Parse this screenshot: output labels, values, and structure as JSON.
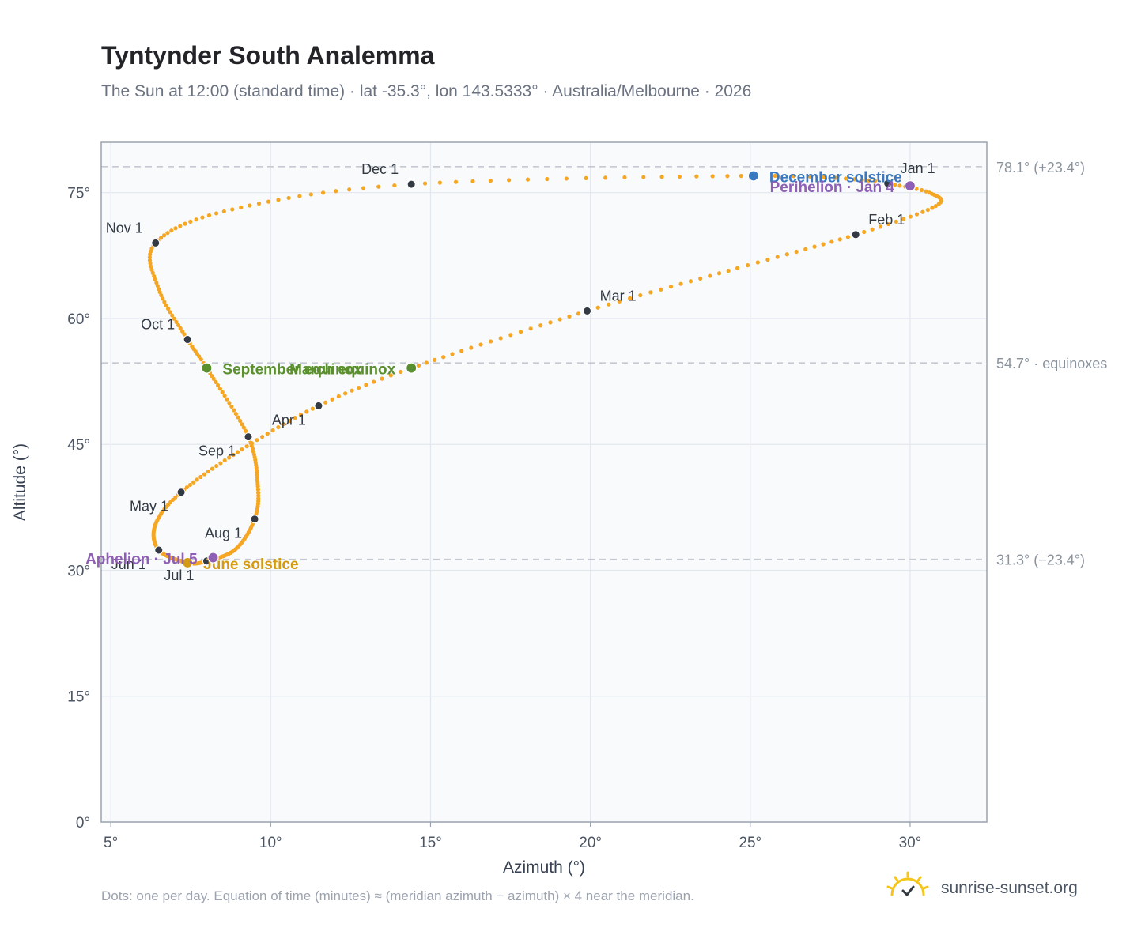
{
  "header": {
    "title": "Tyntynder South Analemma",
    "subtitle": "The Sun at 12:00 (standard time) · lat -35.3°, lon 143.5333° · Australia/Melbourne · 2026"
  },
  "footer": {
    "note": "Dots: one per day. Equation of time (minutes) ≈ (meridian azimuth − azimuth) × 4 near the meridian.",
    "brand": "sunrise-sunset.org"
  },
  "colors": {
    "curve": "#f5a623",
    "month_marker": "#333a44",
    "equinox": "#5a8f2e",
    "december_solstice": "#3a78c0",
    "june_solstice": "#d49a12",
    "perihelion": "#8e5fb5",
    "aphelion": "#8e5fb5",
    "plot_bg": "#f8fafc",
    "grid": "#e3e8ee",
    "reference_line": "#c5cad2"
  },
  "chart_data": {
    "type": "scatter",
    "xlabel": "Azimuth (°)",
    "ylabel": "Altitude (°)",
    "xlim": [
      4.7,
      32.4
    ],
    "ylim": [
      0,
      81
    ],
    "x_ticks": [
      5,
      10,
      15,
      20,
      25,
      30
    ],
    "x_tick_labels": [
      "5°",
      "10°",
      "15°",
      "20°",
      "25°",
      "30°"
    ],
    "y_ticks": [
      0,
      15,
      30,
      45,
      60,
      75
    ],
    "y_tick_labels": [
      "0°",
      "15°",
      "30°",
      "45°",
      "60°",
      "75°"
    ],
    "grid": true,
    "reference_lines": [
      {
        "y": 78.1,
        "label": "78.1° (+23.4°)"
      },
      {
        "y": 54.7,
        "label": "54.7° · equinoxes"
      },
      {
        "y": 31.3,
        "label": "31.3° (−23.4°)"
      }
    ],
    "analemma_path": [
      {
        "day": 1,
        "x": 29.3,
        "y": 76.1
      },
      {
        "day": 10,
        "x": 30.6,
        "y": 75.0
      },
      {
        "day": 20,
        "x": 30.8,
        "y": 73.4
      },
      {
        "day": 32,
        "x": 28.3,
        "y": 70.0
      },
      {
        "day": 45,
        "x": 24.6,
        "y": 66.0
      },
      {
        "day": 60,
        "x": 19.9,
        "y": 60.9
      },
      {
        "day": 79,
        "x": 14.4,
        "y": 54.1
      },
      {
        "day": 91,
        "x": 11.5,
        "y": 49.6
      },
      {
        "day": 105,
        "x": 9.1,
        "y": 44.4
      },
      {
        "day": 121,
        "x": 7.2,
        "y": 39.3
      },
      {
        "day": 135,
        "x": 6.4,
        "y": 35.5
      },
      {
        "day": 152,
        "x": 6.5,
        "y": 32.4
      },
      {
        "day": 172,
        "x": 7.4,
        "y": 30.9
      },
      {
        "day": 182,
        "x": 8.0,
        "y": 31.1
      },
      {
        "day": 198,
        "x": 8.9,
        "y": 32.5
      },
      {
        "day": 213,
        "x": 9.5,
        "y": 36.1
      },
      {
        "day": 225,
        "x": 9.6,
        "y": 40.0
      },
      {
        "day": 244,
        "x": 9.3,
        "y": 45.9
      },
      {
        "day": 265,
        "x": 8.0,
        "y": 54.1
      },
      {
        "day": 274,
        "x": 7.4,
        "y": 57.5
      },
      {
        "day": 290,
        "x": 6.5,
        "y": 63.5
      },
      {
        "day": 305,
        "x": 6.4,
        "y": 69.0
      },
      {
        "day": 320,
        "x": 8.8,
        "y": 73.0
      },
      {
        "day": 335,
        "x": 14.4,
        "y": 76.0
      },
      {
        "day": 355,
        "x": 25.1,
        "y": 77.0
      },
      {
        "day": 365,
        "x": 28.9,
        "y": 76.4
      }
    ],
    "month_markers": [
      {
        "label": "Jan 1",
        "x": 29.3,
        "y": 76.1,
        "anchor": "start",
        "dx": 16,
        "dy": -13
      },
      {
        "label": "Feb 1",
        "x": 28.3,
        "y": 70.0,
        "anchor": "start",
        "dx": 16,
        "dy": -13
      },
      {
        "label": "Mar 1",
        "x": 19.9,
        "y": 60.9,
        "anchor": "start",
        "dx": 16,
        "dy": -13
      },
      {
        "label": "Apr 1",
        "x": 11.5,
        "y": 49.6,
        "anchor": "end",
        "dx": -16,
        "dy": 24
      },
      {
        "label": "May 1",
        "x": 7.2,
        "y": 39.3,
        "anchor": "end",
        "dx": -16,
        "dy": 24
      },
      {
        "label": "Jun 1",
        "x": 6.5,
        "y": 32.4,
        "anchor": "end",
        "dx": -16,
        "dy": 24
      },
      {
        "label": "Jul 1",
        "x": 8.0,
        "y": 31.1,
        "anchor": "end",
        "dx": -16,
        "dy": 24
      },
      {
        "label": "Aug 1",
        "x": 9.5,
        "y": 36.1,
        "anchor": "end",
        "dx": -16,
        "dy": 24
      },
      {
        "label": "Sep 1",
        "x": 9.3,
        "y": 45.9,
        "anchor": "end",
        "dx": -16,
        "dy": 24
      },
      {
        "label": "Oct 1",
        "x": 7.4,
        "y": 57.5,
        "anchor": "end",
        "dx": -16,
        "dy": -13
      },
      {
        "label": "Nov 1",
        "x": 6.4,
        "y": 69.0,
        "anchor": "end",
        "dx": -16,
        "dy": -13
      },
      {
        "label": "Dec 1",
        "x": 14.4,
        "y": 76.0,
        "anchor": "end",
        "dx": -16,
        "dy": -13
      }
    ],
    "events": [
      {
        "label": "December solstice",
        "x": 25.1,
        "y": 77.0,
        "color_key": "december_solstice",
        "anchor": "start",
        "dx": 20,
        "dy": 8
      },
      {
        "label": "March equinox",
        "x": 14.4,
        "y": 54.1,
        "color_key": "equinox",
        "anchor": "end",
        "dx": -20,
        "dy": 8
      },
      {
        "label": "June solstice",
        "x": 7.4,
        "y": 30.9,
        "color_key": "june_solstice",
        "anchor": "start",
        "dx": 20,
        "dy": 8
      },
      {
        "label": "September equinox",
        "x": 8.0,
        "y": 54.1,
        "color_key": "equinox",
        "anchor": "start",
        "dx": 20,
        "dy": 8
      },
      {
        "label": "Perihelion · Jan 4",
        "x": 30.0,
        "y": 75.8,
        "color_key": "perihelion",
        "anchor": "end",
        "dx": -20,
        "dy": 8
      },
      {
        "label": "Aphelion · Jul 5",
        "x": 8.2,
        "y": 31.5,
        "color_key": "aphelion",
        "anchor": "end",
        "dx": -20,
        "dy": 8
      }
    ]
  }
}
